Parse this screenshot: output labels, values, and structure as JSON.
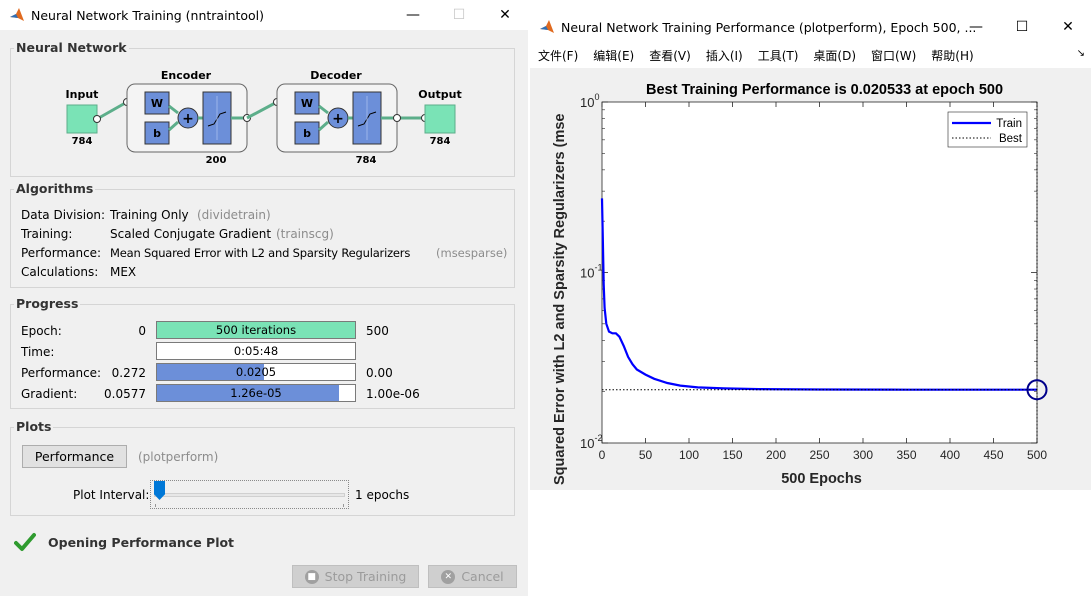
{
  "left_window": {
    "title": "Neural Network Training (nntraintool)",
    "neural_network": {
      "group_title": "Neural Network",
      "input_label": "Input",
      "input_size": "784",
      "encoder_label": "Encoder",
      "encoder_size": "200",
      "decoder_label": "Decoder",
      "decoder_size": "784",
      "output_label": "Output",
      "output_size": "784",
      "w_label": "W",
      "b_label": "b"
    },
    "algorithms": {
      "group_title": "Algorithms",
      "rows": [
        {
          "label": "Data Division:",
          "value": "Training Only",
          "hint": "(dividetrain)"
        },
        {
          "label": "Training:",
          "value": "Scaled Conjugate Gradient",
          "hint": "(trainscg)"
        },
        {
          "label": "Performance:",
          "value": "Mean Squared Error with L2 and Sparsity Regularizers",
          "hint": "(msesparse)"
        },
        {
          "label": "Calculations:",
          "value": "MEX",
          "hint": ""
        }
      ]
    },
    "progress": {
      "group_title": "Progress",
      "rows": [
        {
          "label": "Epoch:",
          "start": "0",
          "bar_text": "500 iterations",
          "end": "500",
          "fill": 1.0,
          "fill_color": "#7ae3b6"
        },
        {
          "label": "Time:",
          "start": "",
          "bar_text": "0:05:48",
          "end": "",
          "fill": 0.0,
          "fill_color": "#7ae3b6"
        },
        {
          "label": "Performance:",
          "start": "0.272",
          "bar_text": "0.0205",
          "end": "0.00",
          "fill": 0.54,
          "fill_color": "#6c8fd9"
        },
        {
          "label": "Gradient:",
          "start": "0.0577",
          "bar_text": "1.26e-05",
          "end": "1.00e-06",
          "fill": 0.92,
          "fill_color": "#6c8fd9"
        }
      ]
    },
    "plots": {
      "group_title": "Plots",
      "performance_button": "Performance",
      "performance_hint": "(plotperform)",
      "interval_label": "Plot Interval:",
      "interval_value": "1 epochs",
      "interval_fraction": 0.0
    },
    "status": {
      "text": "Opening Performance Plot"
    },
    "buttons": {
      "stop": "Stop Training",
      "cancel": "Cancel"
    }
  },
  "right_window": {
    "title": "Neural Network Training Performance (plotperform), Epoch 500, ...",
    "menu": [
      "文件(F)",
      "编辑(E)",
      "查看(V)",
      "插入(I)",
      "工具(T)",
      "桌面(D)",
      "窗口(W)",
      "帮助(H)"
    ],
    "menu_arrow": "↘"
  },
  "chart_data": {
    "type": "line",
    "title": "Best Training Performance is 0.020533 at epoch 500",
    "xlabel": "500 Epochs",
    "ylabel": "Squared Error with L2 and Sparsity Regularizers  (mse",
    "xlim": [
      0,
      500
    ],
    "ylim": [
      0.01,
      1
    ],
    "yscale": "log",
    "xticks": [
      "0",
      "50",
      "100",
      "150",
      "200",
      "250",
      "300",
      "350",
      "400",
      "450",
      "500"
    ],
    "yticks": [
      {
        "base": "10",
        "exp": "0",
        "value": 1
      },
      {
        "base": "10",
        "exp": "-1",
        "value": 0.1
      },
      {
        "base": "10",
        "exp": "-2",
        "value": 0.01
      }
    ],
    "legend_position": "top-right",
    "series": [
      {
        "name": "Train",
        "color": "#0000ff",
        "style": "solid",
        "x": [
          0,
          1,
          2,
          3,
          5,
          8,
          12,
          16,
          20,
          25,
          30,
          35,
          40,
          50,
          60,
          75,
          90,
          110,
          140,
          180,
          250,
          350,
          450,
          500
        ],
        "y": [
          0.272,
          0.15,
          0.085,
          0.062,
          0.05,
          0.045,
          0.044,
          0.044,
          0.042,
          0.037,
          0.032,
          0.029,
          0.027,
          0.0252,
          0.0238,
          0.0225,
          0.0217,
          0.0212,
          0.0209,
          0.0207,
          0.0206,
          0.02055,
          0.02053,
          0.020533
        ]
      },
      {
        "name": "Best",
        "color": "#000000",
        "style": "dotted",
        "x": [
          0,
          500
        ],
        "y": [
          0.020533,
          0.020533
        ]
      }
    ],
    "best_marker": {
      "x": 500,
      "y": 0.020533
    }
  }
}
